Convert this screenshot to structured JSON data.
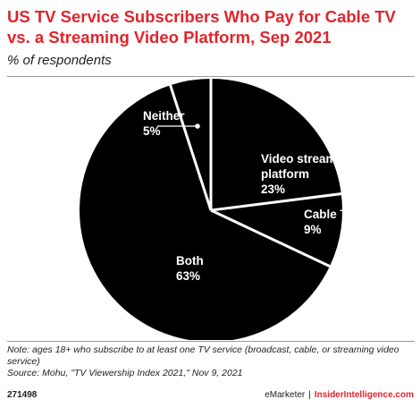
{
  "header": {
    "title": "US TV Service Subscribers Who Pay for Cable TV vs. a Streaming Video Platform, Sep 2021",
    "subtitle": "% of respondents"
  },
  "chart_data": {
    "type": "pie",
    "title": "US TV Service Subscribers Who Pay for Cable TV vs. a Streaming Video Platform, Sep 2021",
    "subtitle": "% of respondents",
    "start_angle_deg": 0,
    "direction": "clockwise",
    "slice_color": "#000000",
    "separator_color": "#ffffff",
    "slices": [
      {
        "label": "Video streaming platform",
        "label_lines": [
          "Video streaming",
          "platform"
        ],
        "value": 23,
        "value_label": "23%"
      },
      {
        "label": "Cable TV",
        "label_lines": [
          "Cable TV"
        ],
        "value": 9,
        "value_label": "9%"
      },
      {
        "label": "Both",
        "label_lines": [
          "Both"
        ],
        "value": 63,
        "value_label": "63%"
      },
      {
        "label": "Neither",
        "label_lines": [
          "Neither"
        ],
        "value": 5,
        "value_label": "5%"
      }
    ]
  },
  "footer": {
    "note": "Note: ages 18+ who subscribe to at least one TV service (broadcast, cable, or streaming video service)",
    "source": "Source: Mohu, \"TV Viewership Index 2021,\" Nov 9, 2021",
    "chart_id": "271498",
    "brand": "eMarketer",
    "separator": "|",
    "site": "InsiderIntelligence.com"
  }
}
